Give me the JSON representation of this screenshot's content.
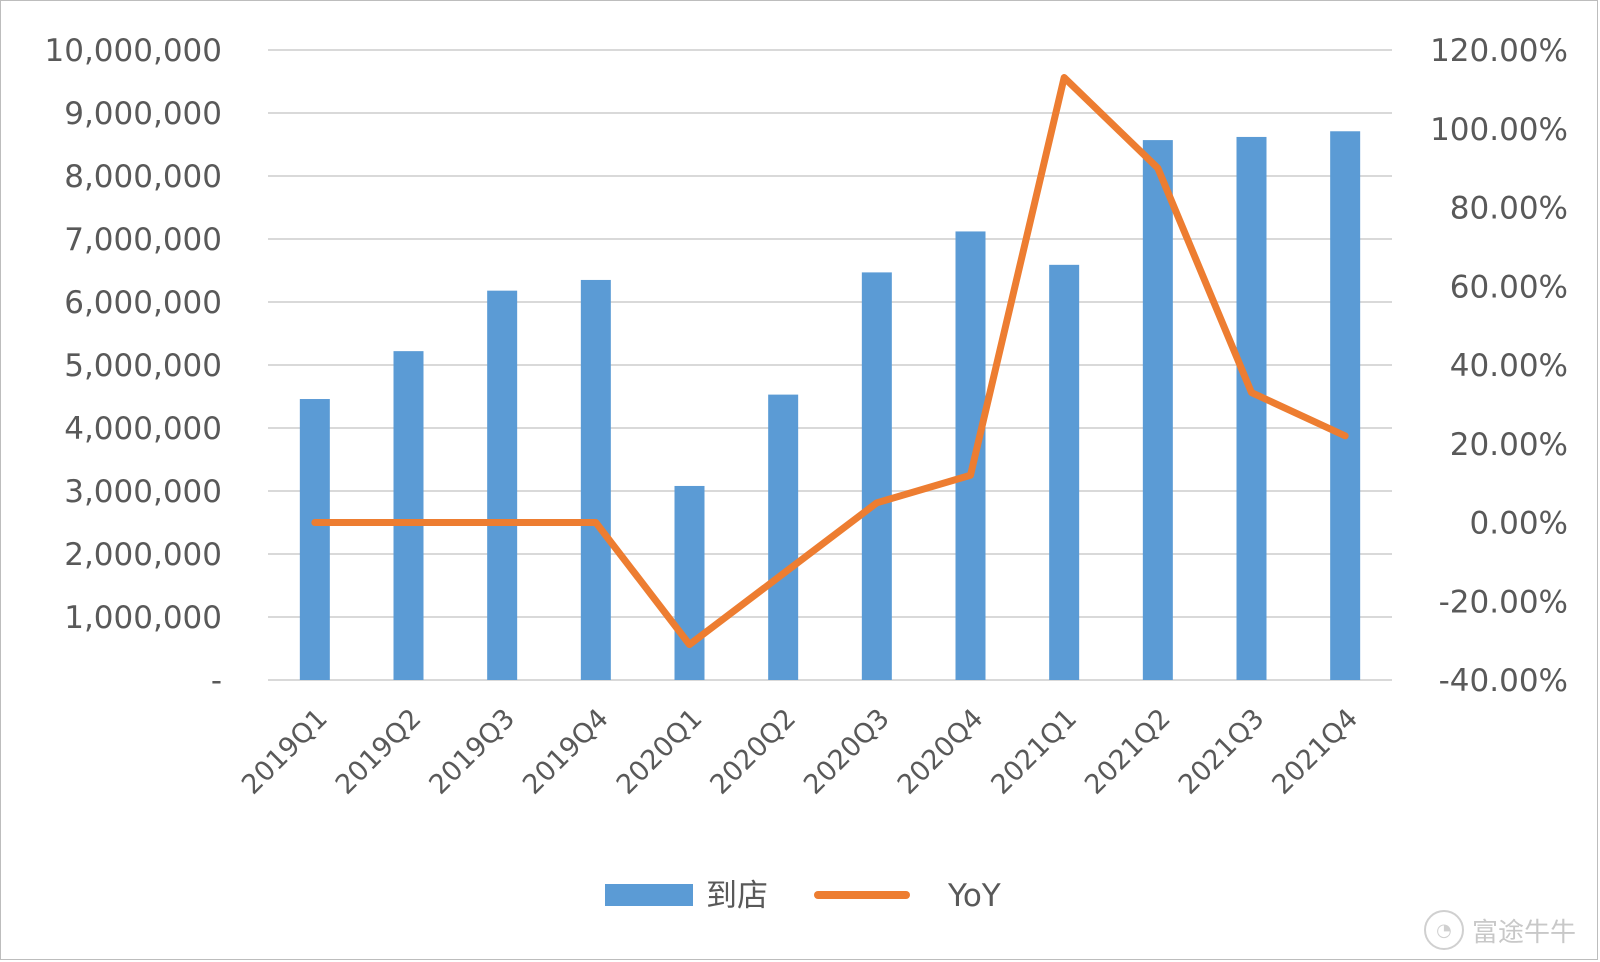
{
  "chart_data": {
    "type": "bar",
    "categories": [
      "2019Q1",
      "2019Q2",
      "2019Q3",
      "2019Q4",
      "2020Q1",
      "2020Q2",
      "2020Q3",
      "2020Q4",
      "2021Q1",
      "2021Q2",
      "2021Q3",
      "2021Q4"
    ],
    "series": [
      {
        "name": "到店",
        "type": "bar",
        "axis": "left",
        "color": "#5b9bd5",
        "values": [
          4460000,
          5220000,
          6180000,
          6350000,
          3080000,
          4530000,
          6470000,
          7120000,
          6590000,
          8570000,
          8620000,
          8710000
        ]
      },
      {
        "name": "YoY",
        "type": "line",
        "axis": "right",
        "color": "#ed7d31",
        "values": [
          0.0,
          0.0,
          0.0,
          0.0,
          -0.31,
          -0.13,
          0.05,
          0.12,
          1.13,
          0.9,
          0.33,
          0.22
        ]
      }
    ],
    "left_axis": {
      "min": 0,
      "max": 10000000,
      "tick_labels": [
        "-",
        "1,000,000",
        "2,000,000",
        "3,000,000",
        "4,000,000",
        "5,000,000",
        "6,000,000",
        "7,000,000",
        "8,000,000",
        "9,000,000",
        "10,000,000"
      ]
    },
    "right_axis": {
      "min": -0.4,
      "max": 1.2,
      "tick_labels": [
        "-40.00%",
        "-20.00%",
        "0.00%",
        "20.00%",
        "40.00%",
        "60.00%",
        "80.00%",
        "100.00%",
        "120.00%"
      ]
    },
    "grid": true,
    "legend_position": "bottom",
    "title": "",
    "xlabel": "",
    "ylabel": ""
  },
  "legend": {
    "bar_label": "到店",
    "line_label": "YoY"
  },
  "watermark": {
    "text": "富途牛牛",
    "logo_icon": "futu-logo-icon"
  }
}
